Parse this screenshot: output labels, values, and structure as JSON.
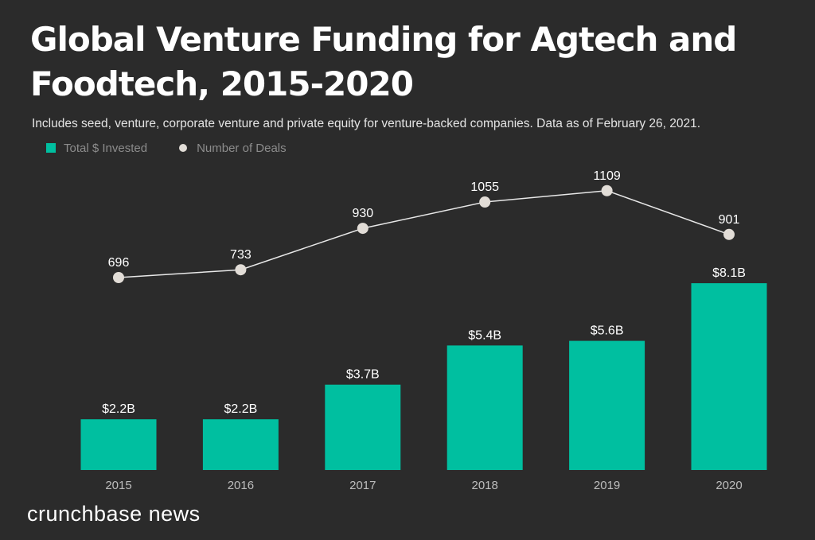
{
  "header": {
    "title": "Global Venture Funding for Agtech and Foodtech, 2015-2020",
    "subtitle": "Includes seed, venture, corporate venture and private equity for venture-backed companies. Data as of February 26, 2021."
  },
  "brand": {
    "text": "crunchbase news"
  },
  "colors": {
    "bar": "#00bfa0",
    "deals_line": "#e8e8e8",
    "deals_point": "#e2ddd7",
    "background": "#2b2b2b",
    "label": "#ffffff",
    "tick": "#bdbdbd"
  },
  "chart_data": {
    "type": "bar",
    "categories": [
      "2015",
      "2016",
      "2017",
      "2018",
      "2019",
      "2020"
    ],
    "series": [
      {
        "name": "Total $ Invested",
        "type": "bar",
        "values": [
          2.2,
          2.2,
          3.7,
          5.4,
          5.6,
          8.1
        ],
        "labels": [
          "$2.2B",
          "$2.2B",
          "$3.7B",
          "$5.4B",
          "$5.6B",
          "$8.1B"
        ]
      },
      {
        "name": "Number of Deals",
        "type": "line",
        "values": [
          696,
          733,
          930,
          1055,
          1109,
          901
        ],
        "labels": [
          "696",
          "733",
          "930",
          "1055",
          "1109",
          "901"
        ]
      }
    ],
    "legend": "top-left",
    "grid": false
  }
}
